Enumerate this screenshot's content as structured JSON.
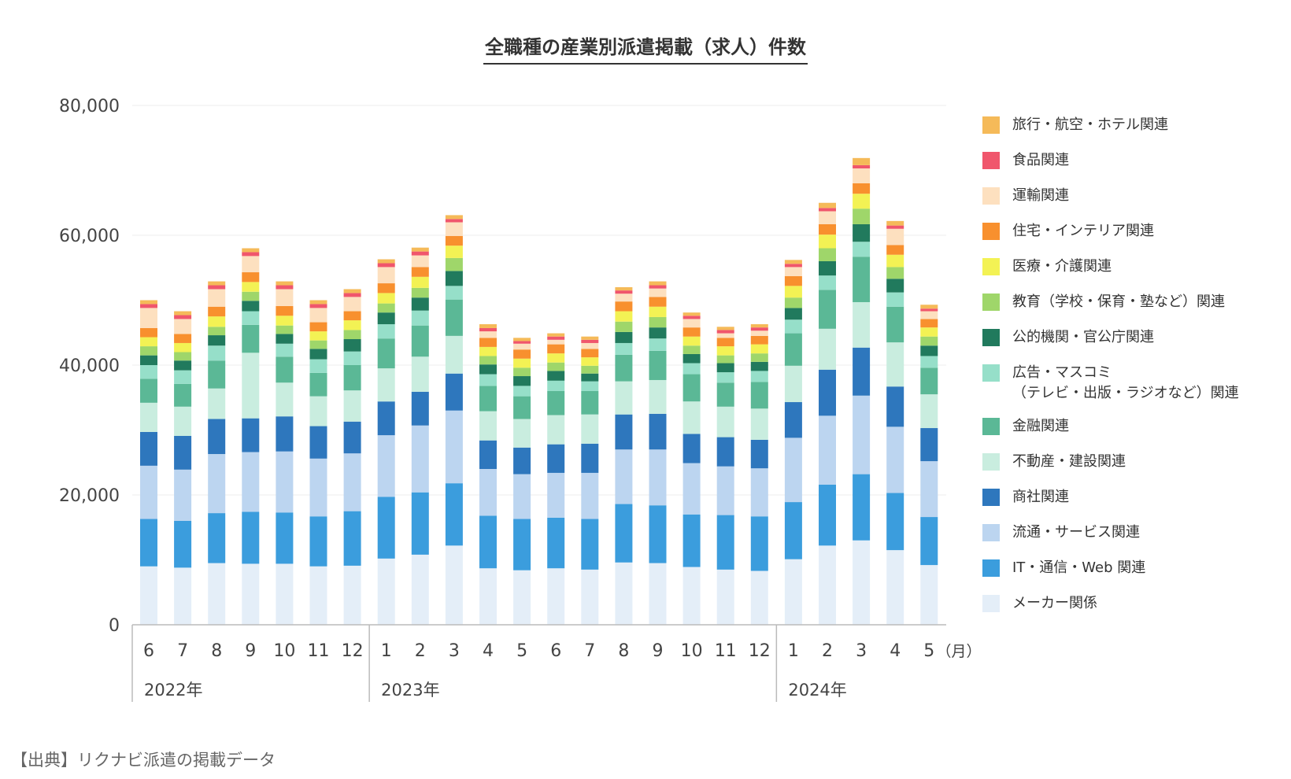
{
  "chart_data": {
    "type": "bar",
    "stacked": true,
    "title": "全職種の産業別派遣掲載（求人）件数",
    "x_unit_label": "（月）",
    "ylim": [
      0,
      80000
    ],
    "yticks": [
      0,
      20000,
      40000,
      60000,
      80000
    ],
    "ytick_labels": [
      "0",
      "20,000",
      "40,000",
      "60,000",
      "80,000"
    ],
    "grid": true,
    "legend_position": "right",
    "categories": [
      "6",
      "7",
      "8",
      "9",
      "10",
      "11",
      "12",
      "1",
      "2",
      "3",
      "4",
      "5",
      "6",
      "7",
      "8",
      "9",
      "10",
      "11",
      "12",
      "1",
      "2",
      "3",
      "4",
      "5"
    ],
    "year_groups": [
      {
        "label": "2022年",
        "start": 0,
        "end": 6
      },
      {
        "label": "2023年",
        "start": 7,
        "end": 18
      },
      {
        "label": "2024年",
        "start": 19,
        "end": 23
      }
    ],
    "series": [
      {
        "name": "メーカー関係",
        "color": "#e4eef8",
        "values": [
          9000,
          8800,
          9500,
          9400,
          9400,
          9000,
          9100,
          10200,
          10800,
          12200,
          8700,
          8400,
          8700,
          8500,
          9600,
          9500,
          8900,
          8500,
          8300,
          10100,
          12200,
          13000,
          11500,
          9200
        ]
      },
      {
        "name": "IT・通信・Web 関連",
        "color": "#3b9ddd",
        "values": [
          7300,
          7200,
          7700,
          8000,
          7900,
          7700,
          8400,
          9500,
          9600,
          9600,
          8100,
          7900,
          7800,
          7800,
          9000,
          8900,
          8100,
          8400,
          8400,
          8800,
          9400,
          10200,
          8800,
          7400
        ]
      },
      {
        "name": "流通・サービス関連",
        "color": "#bcd5f0",
        "values": [
          8200,
          7900,
          9100,
          9200,
          9400,
          8900,
          8900,
          9500,
          10300,
          11200,
          7200,
          6900,
          6900,
          7100,
          8400,
          8600,
          7900,
          7500,
          7400,
          9900,
          10600,
          12100,
          10200,
          8600
        ]
      },
      {
        "name": "商社関連",
        "color": "#2e77bd",
        "values": [
          5200,
          5200,
          5400,
          5200,
          5400,
          5000,
          4900,
          5200,
          5200,
          5700,
          4400,
          4100,
          4400,
          4500,
          5400,
          5500,
          4500,
          4500,
          4400,
          5500,
          7100,
          7400,
          6200,
          5100
        ]
      },
      {
        "name": "不動産・建設関連",
        "color": "#c9eddf",
        "values": [
          4500,
          4500,
          4700,
          10100,
          5200,
          4600,
          4800,
          5100,
          5400,
          5800,
          4500,
          4400,
          4500,
          4500,
          5100,
          5200,
          5000,
          4700,
          4800,
          5600,
          6300,
          7000,
          6800,
          5200
        ]
      },
      {
        "name": "金融関連",
        "color": "#5bb896",
        "values": [
          3700,
          3500,
          4300,
          4300,
          4000,
          3600,
          3900,
          4600,
          4800,
          5600,
          3900,
          3500,
          3700,
          3600,
          4100,
          4500,
          4200,
          3700,
          4100,
          5000,
          6000,
          7000,
          5500,
          4100
        ]
      },
      {
        "name": "広告・マスコミ\n（テレビ・出版・ラジオなど）関連",
        "color": "#96dfc9",
        "values": [
          2100,
          2100,
          2300,
          2100,
          2000,
          2100,
          2100,
          2200,
          2300,
          2100,
          1800,
          1600,
          1600,
          1500,
          1800,
          1900,
          1700,
          1600,
          1700,
          2100,
          2200,
          2300,
          2200,
          1800
        ]
      },
      {
        "name": "公的機関・官公庁関連",
        "color": "#217a5d",
        "values": [
          1500,
          1500,
          1600,
          1600,
          1500,
          1600,
          1900,
          1800,
          2000,
          2300,
          1500,
          1500,
          1500,
          1200,
          1700,
          1700,
          1400,
          1400,
          1400,
          1800,
          2200,
          2700,
          2100,
          1600
        ]
      },
      {
        "name": "教育（学校・保育・塾など）関連",
        "color": "#9fd66a",
        "values": [
          1400,
          1300,
          1300,
          1400,
          1300,
          1300,
          1400,
          1400,
          1500,
          2000,
          1300,
          1300,
          1300,
          1200,
          1600,
          1600,
          1300,
          1200,
          1300,
          1600,
          2000,
          2400,
          1800,
          1400
        ]
      },
      {
        "name": "医療・介護関連",
        "color": "#f3f254",
        "values": [
          1400,
          1400,
          1600,
          1500,
          1500,
          1400,
          1500,
          1600,
          1700,
          1900,
          1400,
          1400,
          1400,
          1300,
          1600,
          1600,
          1400,
          1400,
          1400,
          1800,
          2100,
          2300,
          1900,
          1400
        ]
      },
      {
        "name": "住宅・インテリア関連",
        "color": "#f8902e",
        "values": [
          1400,
          1400,
          1500,
          1500,
          1500,
          1400,
          1400,
          1500,
          1500,
          1500,
          1400,
          1400,
          1400,
          1300,
          1500,
          1500,
          1400,
          1300,
          1300,
          1500,
          1600,
          1600,
          1500,
          1300
        ]
      },
      {
        "name": "運輸関連",
        "color": "#fde0bf",
        "values": [
          3100,
          2300,
          2700,
          2500,
          2600,
          2200,
          2200,
          2500,
          1800,
          2100,
          1000,
          900,
          700,
          900,
          1200,
          1300,
          1300,
          700,
          800,
          1400,
          2000,
          2300,
          2500,
          1200
        ]
      },
      {
        "name": "食品関連",
        "color": "#f0566c",
        "values": [
          600,
          600,
          600,
          600,
          600,
          600,
          600,
          600,
          600,
          500,
          500,
          400,
          500,
          500,
          500,
          500,
          500,
          500,
          500,
          500,
          500,
          500,
          500,
          400
        ]
      },
      {
        "name": "旅行・航空・ホテル関連",
        "color": "#f5ba59",
        "values": [
          600,
          600,
          600,
          600,
          600,
          600,
          600,
          600,
          600,
          600,
          600,
          500,
          500,
          500,
          500,
          600,
          500,
          500,
          500,
          600,
          800,
          1100,
          700,
          600
        ]
      }
    ]
  },
  "source_note": "【出典】リクナビ派遣の掲載データ"
}
